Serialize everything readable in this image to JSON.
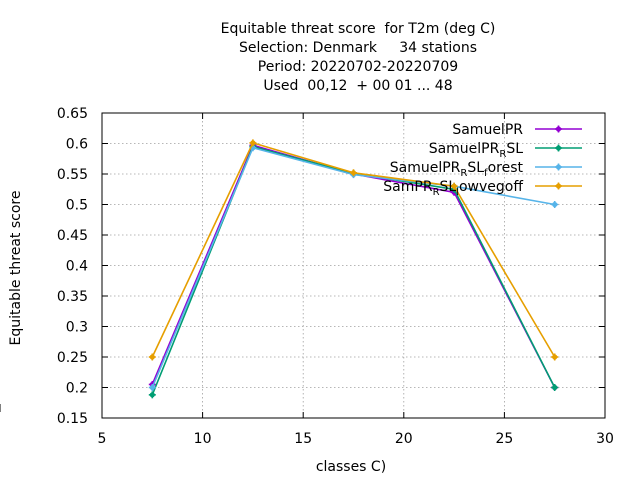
{
  "chart_data": {
    "type": "line",
    "title_lines": [
      "Equitable threat score  for T2m (deg C)",
      "Selection: Denmark     34 stations",
      "Period: 20220702-20220709",
      "Used  00,12  + 00 01 ... 48"
    ],
    "xlabel": "classes C)",
    "ylabel": "Equitable threat score",
    "xlim": [
      5,
      30
    ],
    "ylim": [
      0.15,
      0.65
    ],
    "xticks": [
      5,
      10,
      15,
      20,
      25,
      30
    ],
    "xtick_labels": [
      "5",
      "10",
      "15",
      "20",
      "25",
      "30"
    ],
    "yticks": [
      0.15,
      0.2,
      0.25,
      0.3,
      0.35,
      0.4,
      0.45,
      0.5,
      0.55,
      0.6,
      0.65
    ],
    "ytick_labels": [
      "0.15",
      "0.2",
      "0.25",
      "0.3",
      "0.35",
      "0.4",
      "0.45",
      "0.5",
      "0.55",
      "0.6",
      "0.65"
    ],
    "grid": true,
    "legend_position": "top-right",
    "series": [
      {
        "name": "SamuelPR",
        "legend_main": "SamuelPR",
        "legend_sub": "",
        "legend_tail": "",
        "color": "#9400d3",
        "x": [
          7.5,
          12.5,
          17.5,
          22.5,
          27.5
        ],
        "y": [
          0.205,
          0.597,
          0.55,
          0.52,
          0.2
        ]
      },
      {
        "name": "SamuelPR_RSL",
        "legend_main": "SamuelPR",
        "legend_sub": "R",
        "legend_tail": "SL",
        "color": "#009e73",
        "x": [
          7.5,
          12.5,
          17.5,
          22.5,
          27.5
        ],
        "y": [
          0.188,
          0.595,
          0.551,
          0.525,
          0.2
        ]
      },
      {
        "name": "SamuelPR_RSL_forest",
        "legend_main": "SamuelPR",
        "legend_sub": "R",
        "legend_tail": "SL",
        "legend_sub2": "f",
        "legend_tail2": "orest",
        "color": "#56b4e9",
        "x": [
          7.5,
          12.5,
          17.5,
          22.5,
          27.5
        ],
        "y": [
          0.2,
          0.593,
          0.549,
          0.53,
          0.5
        ]
      },
      {
        "name": "SamPR_RSL_lowvegoff",
        "legend_main": "SamPR",
        "legend_sub": "R",
        "legend_tail": "SL",
        "legend_sub2": "l",
        "legend_tail2": "owvegoff",
        "color": "#e69f00",
        "x": [
          7.5,
          12.5,
          17.5,
          22.5,
          27.5
        ],
        "y": [
          0.25,
          0.601,
          0.552,
          0.53,
          0.25
        ]
      }
    ]
  }
}
